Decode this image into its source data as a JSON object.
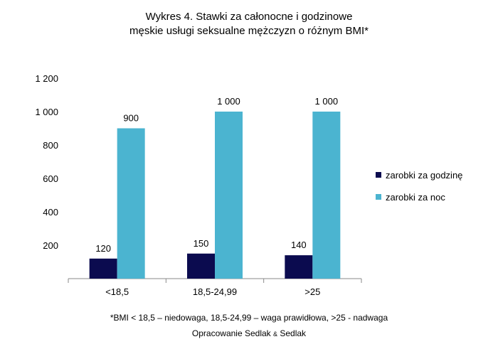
{
  "chart_data": {
    "type": "bar",
    "title_line1": "Wykres 4. Stawki za całonocne i godzinowe",
    "title_line2": "męskie usługi seksualne mężczyzn o różnym BMI*",
    "categories": [
      "<18,5",
      "18,5-24,99",
      ">25"
    ],
    "series": [
      {
        "name": "zarobki za godzinę",
        "color": "#0b0b4f",
        "values": [
          120,
          150,
          140
        ],
        "labels": [
          "120",
          "150",
          "140"
        ]
      },
      {
        "name": "zarobki za noc",
        "color": "#4bb4d0",
        "values": [
          900,
          1000,
          1000
        ],
        "labels": [
          "900",
          "1 000",
          "1 000"
        ]
      }
    ],
    "y_ticks": [
      200,
      400,
      600,
      800,
      1000,
      1200
    ],
    "y_tick_labels": [
      "200",
      "400",
      "600",
      "800",
      "1 000",
      "1 200"
    ],
    "ylim": [
      0,
      1200
    ],
    "grid": false,
    "legend_position": "right"
  },
  "footnote": "*BMI < 18,5 – niedowaga, 18,5-24,99 – waga prawidłowa, >25 - nadwaga",
  "credit_main": "Opracowanie Sedlak",
  "credit_amp": "&",
  "credit_end": "Sedlak"
}
